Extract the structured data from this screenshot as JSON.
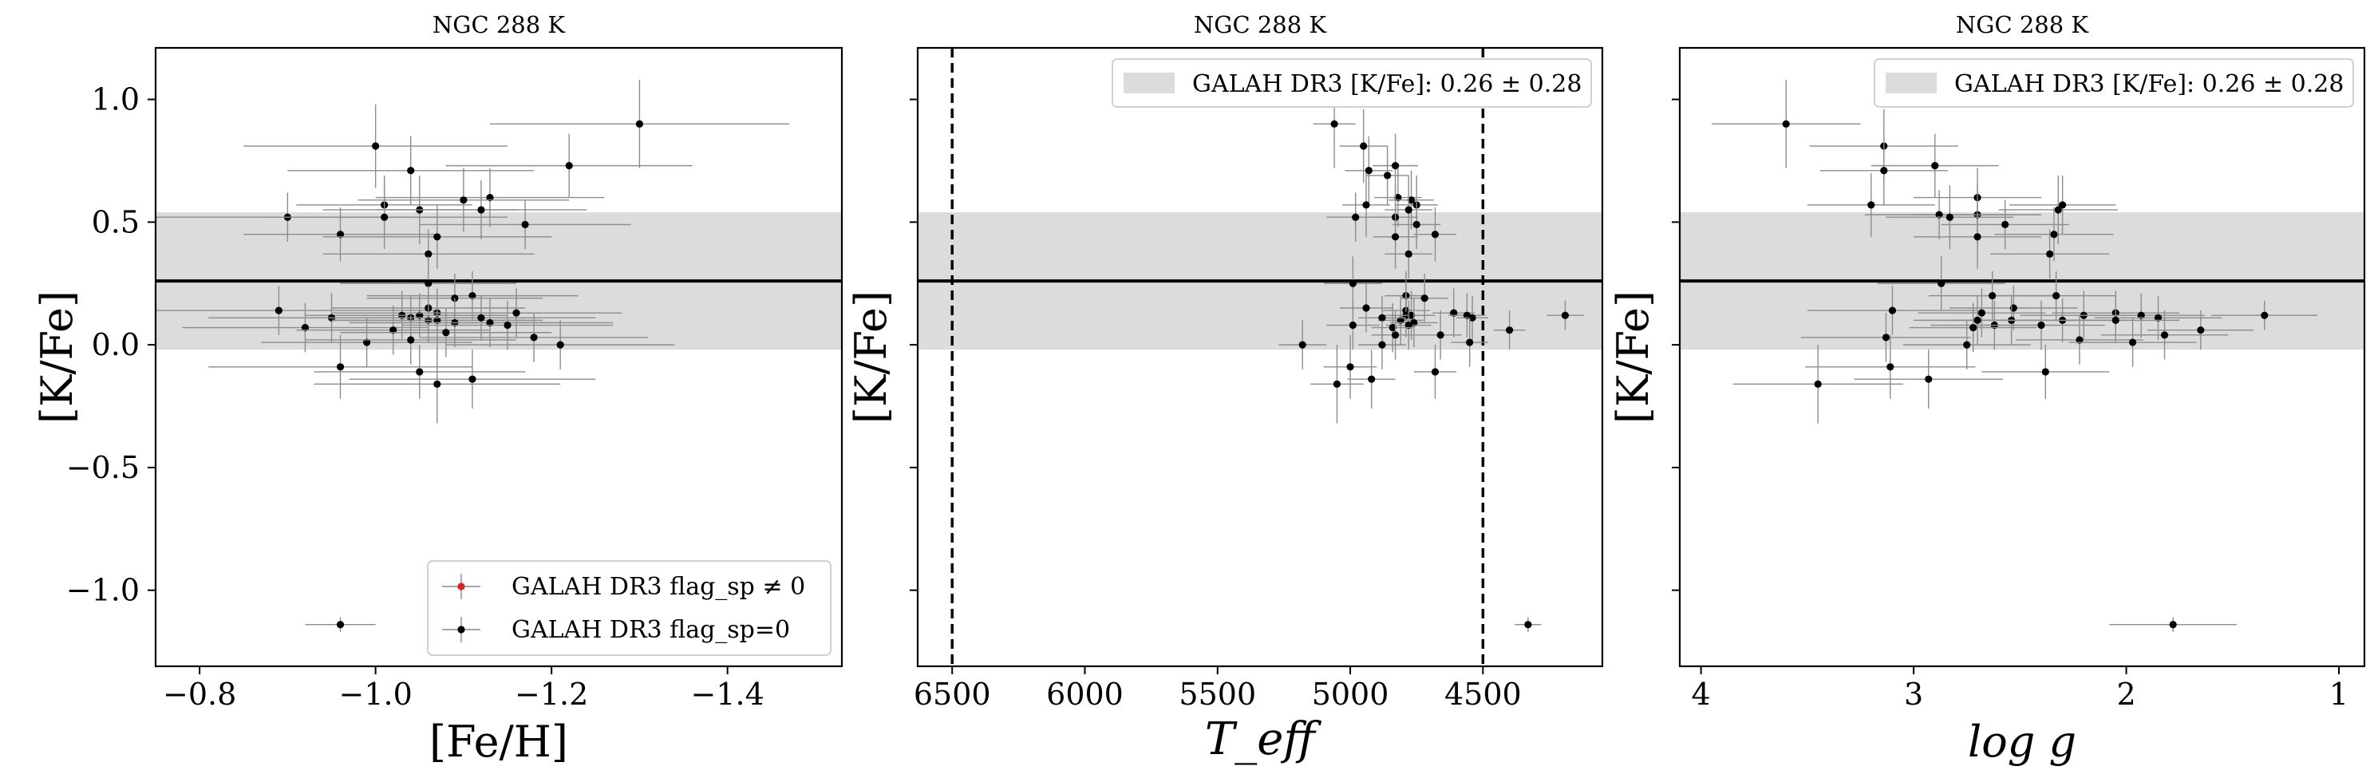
{
  "figure": {
    "title": "NGC 288 K"
  },
  "galah_band": {
    "center": 0.26,
    "halfwidth": 0.28
  },
  "legend_labels": {
    "flag_nonzero": "GALAH DR3 flag_sp ≠ 0",
    "flag_zero": "GALAH DR3 flag_sp=0",
    "galah_band": "GALAH DR3 [K/Fe]: 0.26 ± 0.28"
  },
  "colors": {
    "points": "#000000",
    "flag_nonzero": "#d62728",
    "band": "#dcdcdc",
    "errorbar": "#8c8c8c"
  },
  "chart_data": [
    {
      "type": "scatter",
      "title": "NGC 288 K",
      "xlabel": "[Fe/H]",
      "ylabel": "[K/Fe]",
      "xlim": [
        -0.75,
        -1.53
      ],
      "ylim": [
        -1.31,
        1.21
      ],
      "xticks": [
        -0.8,
        -1.0,
        -1.2,
        -1.4
      ],
      "xtick_labels": [
        "−0.8",
        "−1.0",
        "−1.2",
        "−1.4"
      ],
      "yticks": [
        1.0,
        0.5,
        0.0,
        -0.5,
        -1.0
      ],
      "ytick_labels": [
        "1.0",
        "0.5",
        "0.0",
        "−0.5",
        "−1.0"
      ],
      "legend": "bottom-right",
      "legend_entries": [
        "GALAH DR3 flag_sp ≠ 0",
        "GALAH DR3 flag_sp=0"
      ],
      "hline": 0.26,
      "vlines": [],
      "points": [
        {
          "x": -1.3,
          "y": 0.9,
          "xerr": 0.17,
          "yerr": 0.18
        },
        {
          "x": -1.0,
          "y": 0.81,
          "xerr": 0.15,
          "yerr": 0.17
        },
        {
          "x": -1.04,
          "y": 0.71,
          "xerr": 0.14,
          "yerr": 0.14
        },
        {
          "x": -1.22,
          "y": 0.73,
          "xerr": 0.14,
          "yerr": 0.13
        },
        {
          "x": -1.13,
          "y": 0.6,
          "xerr": 0.13,
          "yerr": 0.12
        },
        {
          "x": -1.1,
          "y": 0.59,
          "xerr": 0.12,
          "yerr": 0.13
        },
        {
          "x": -1.01,
          "y": 0.57,
          "xerr": 0.1,
          "yerr": 0.12
        },
        {
          "x": -1.05,
          "y": 0.55,
          "xerr": 0.11,
          "yerr": 0.14
        },
        {
          "x": -1.12,
          "y": 0.55,
          "xerr": 0.12,
          "yerr": 0.12
        },
        {
          "x": -0.9,
          "y": 0.52,
          "xerr": 0.17,
          "yerr": 0.1
        },
        {
          "x": -1.01,
          "y": 0.52,
          "xerr": 0.14,
          "yerr": 0.13
        },
        {
          "x": -1.17,
          "y": 0.49,
          "xerr": 0.12,
          "yerr": 0.1
        },
        {
          "x": -0.96,
          "y": 0.45,
          "xerr": 0.11,
          "yerr": 0.11
        },
        {
          "x": -1.07,
          "y": 0.44,
          "xerr": 0.13,
          "yerr": 0.13
        },
        {
          "x": -1.06,
          "y": 0.37,
          "xerr": 0.12,
          "yerr": 0.1
        },
        {
          "x": -1.06,
          "y": 0.25,
          "xerr": 0.1,
          "yerr": 0.11
        },
        {
          "x": -1.11,
          "y": 0.2,
          "xerr": 0.12,
          "yerr": 0.1
        },
        {
          "x": -1.09,
          "y": 0.19,
          "xerr": 0.1,
          "yerr": 0.1
        },
        {
          "x": -0.89,
          "y": 0.14,
          "xerr": 0.18,
          "yerr": 0.1
        },
        {
          "x": -1.06,
          "y": 0.15,
          "xerr": 0.11,
          "yerr": 0.09
        },
        {
          "x": -1.07,
          "y": 0.13,
          "xerr": 0.12,
          "yerr": 0.1
        },
        {
          "x": -1.03,
          "y": 0.12,
          "xerr": 0.11,
          "yerr": 0.1
        },
        {
          "x": -1.05,
          "y": 0.12,
          "xerr": 0.1,
          "yerr": 0.09
        },
        {
          "x": -1.16,
          "y": 0.13,
          "xerr": 0.12,
          "yerr": 0.1
        },
        {
          "x": -0.95,
          "y": 0.11,
          "xerr": 0.14,
          "yerr": 0.1
        },
        {
          "x": -1.04,
          "y": 0.11,
          "xerr": 0.12,
          "yerr": 0.09
        },
        {
          "x": -1.06,
          "y": 0.1,
          "xerr": 0.11,
          "yerr": 0.09
        },
        {
          "x": -1.07,
          "y": 0.1,
          "xerr": 0.12,
          "yerr": 0.1
        },
        {
          "x": -1.12,
          "y": 0.11,
          "xerr": 0.13,
          "yerr": 0.09
        },
        {
          "x": -1.09,
          "y": 0.09,
          "xerr": 0.12,
          "yerr": 0.1
        },
        {
          "x": -1.13,
          "y": 0.09,
          "xerr": 0.14,
          "yerr": 0.1
        },
        {
          "x": -1.15,
          "y": 0.08,
          "xerr": 0.12,
          "yerr": 0.1
        },
        {
          "x": -0.92,
          "y": 0.07,
          "xerr": 0.14,
          "yerr": 0.1
        },
        {
          "x": -1.02,
          "y": 0.06,
          "xerr": 0.11,
          "yerr": 0.1
        },
        {
          "x": -1.08,
          "y": 0.05,
          "xerr": 0.12,
          "yerr": 0.1
        },
        {
          "x": -1.18,
          "y": 0.03,
          "xerr": 0.13,
          "yerr": 0.1
        },
        {
          "x": -0.99,
          "y": 0.01,
          "xerr": 0.12,
          "yerr": 0.1
        },
        {
          "x": -1.04,
          "y": 0.02,
          "xerr": 0.12,
          "yerr": 0.1
        },
        {
          "x": -1.21,
          "y": 0.0,
          "xerr": 0.13,
          "yerr": 0.1
        },
        {
          "x": -0.96,
          "y": -0.09,
          "xerr": 0.15,
          "yerr": 0.13
        },
        {
          "x": -1.05,
          "y": -0.11,
          "xerr": 0.12,
          "yerr": 0.11
        },
        {
          "x": -1.11,
          "y": -0.14,
          "xerr": 0.14,
          "yerr": 0.12
        },
        {
          "x": -1.07,
          "y": -0.16,
          "xerr": 0.14,
          "yerr": 0.16
        },
        {
          "x": -0.96,
          "y": -1.14,
          "xerr": 0.04,
          "yerr": 0.03
        }
      ]
    },
    {
      "type": "scatter",
      "title": "NGC 288 K",
      "xlabel": "T_eff",
      "ylabel": "[K/Fe]",
      "xlim": [
        6630,
        4050
      ],
      "ylim": [
        -1.31,
        1.21
      ],
      "xticks": [
        6500,
        6000,
        5500,
        5000,
        4500
      ],
      "xtick_labels": [
        "6500",
        "6000",
        "5500",
        "5000",
        "4500"
      ],
      "yticks": [
        1.0,
        0.5,
        0.0,
        -0.5,
        -1.0
      ],
      "ytick_labels": [
        "",
        "",
        "",
        "",
        ""
      ],
      "legend": "top-right",
      "legend_entries": [
        "GALAH DR3 [K/Fe]: 0.26 ± 0.28"
      ],
      "hline": 0.26,
      "vlines": [
        6500,
        4500
      ],
      "points": [
        {
          "x": 5060,
          "y": 0.9,
          "xerr": 80,
          "yerr": 0.18
        },
        {
          "x": 4950,
          "y": 0.81,
          "xerr": 90,
          "yerr": 0.15
        },
        {
          "x": 4830,
          "y": 0.73,
          "xerr": 85,
          "yerr": 0.13
        },
        {
          "x": 4930,
          "y": 0.71,
          "xerr": 90,
          "yerr": 0.14
        },
        {
          "x": 4860,
          "y": 0.69,
          "xerr": 80,
          "yerr": 0.12
        },
        {
          "x": 4820,
          "y": 0.6,
          "xerr": 90,
          "yerr": 0.12
        },
        {
          "x": 4770,
          "y": 0.59,
          "xerr": 85,
          "yerr": 0.12
        },
        {
          "x": 4940,
          "y": 0.57,
          "xerr": 90,
          "yerr": 0.13
        },
        {
          "x": 4750,
          "y": 0.57,
          "xerr": 80,
          "yerr": 0.12
        },
        {
          "x": 4780,
          "y": 0.55,
          "xerr": 90,
          "yerr": 0.14
        },
        {
          "x": 4980,
          "y": 0.52,
          "xerr": 110,
          "yerr": 0.1
        },
        {
          "x": 4830,
          "y": 0.52,
          "xerr": 85,
          "yerr": 0.13
        },
        {
          "x": 4750,
          "y": 0.49,
          "xerr": 90,
          "yerr": 0.1
        },
        {
          "x": 4680,
          "y": 0.45,
          "xerr": 80,
          "yerr": 0.11
        },
        {
          "x": 4830,
          "y": 0.44,
          "xerr": 85,
          "yerr": 0.13
        },
        {
          "x": 4780,
          "y": 0.37,
          "xerr": 90,
          "yerr": 0.1
        },
        {
          "x": 4990,
          "y": 0.25,
          "xerr": 110,
          "yerr": 0.11
        },
        {
          "x": 4790,
          "y": 0.2,
          "xerr": 80,
          "yerr": 0.1
        },
        {
          "x": 4720,
          "y": 0.19,
          "xerr": 90,
          "yerr": 0.1
        },
        {
          "x": 4940,
          "y": 0.15,
          "xerr": 100,
          "yerr": 0.1
        },
        {
          "x": 4790,
          "y": 0.14,
          "xerr": 90,
          "yerr": 0.09
        },
        {
          "x": 4610,
          "y": 0.13,
          "xerr": 80,
          "yerr": 0.1
        },
        {
          "x": 4790,
          "y": 0.12,
          "xerr": 85,
          "yerr": 0.09
        },
        {
          "x": 4770,
          "y": 0.12,
          "xerr": 90,
          "yerr": 0.1
        },
        {
          "x": 4560,
          "y": 0.12,
          "xerr": 70,
          "yerr": 0.09
        },
        {
          "x": 4540,
          "y": 0.11,
          "xerr": 60,
          "yerr": 0.09
        },
        {
          "x": 4190,
          "y": 0.12,
          "xerr": 70,
          "yerr": 0.06
        },
        {
          "x": 4810,
          "y": 0.1,
          "xerr": 85,
          "yerr": 0.1
        },
        {
          "x": 4760,
          "y": 0.09,
          "xerr": 90,
          "yerr": 0.1
        },
        {
          "x": 4880,
          "y": 0.11,
          "xerr": 90,
          "yerr": 0.09
        },
        {
          "x": 4780,
          "y": 0.08,
          "xerr": 85,
          "yerr": 0.1
        },
        {
          "x": 4990,
          "y": 0.08,
          "xerr": 100,
          "yerr": 0.1
        },
        {
          "x": 4840,
          "y": 0.07,
          "xerr": 80,
          "yerr": 0.1
        },
        {
          "x": 4400,
          "y": 0.06,
          "xerr": 60,
          "yerr": 0.08
        },
        {
          "x": 4830,
          "y": 0.04,
          "xerr": 90,
          "yerr": 0.1
        },
        {
          "x": 4660,
          "y": 0.04,
          "xerr": 80,
          "yerr": 0.1
        },
        {
          "x": 4550,
          "y": 0.01,
          "xerr": 70,
          "yerr": 0.1
        },
        {
          "x": 5180,
          "y": 0.0,
          "xerr": 90,
          "yerr": 0.1
        },
        {
          "x": 4880,
          "y": 0.0,
          "xerr": 90,
          "yerr": 0.1
        },
        {
          "x": 5000,
          "y": -0.09,
          "xerr": 100,
          "yerr": 0.13
        },
        {
          "x": 4680,
          "y": -0.11,
          "xerr": 80,
          "yerr": 0.11
        },
        {
          "x": 4920,
          "y": -0.14,
          "xerr": 90,
          "yerr": 0.12
        },
        {
          "x": 5050,
          "y": -0.16,
          "xerr": 100,
          "yerr": 0.16
        },
        {
          "x": 4330,
          "y": -1.14,
          "xerr": 50,
          "yerr": 0.03
        }
      ]
    },
    {
      "type": "scatter",
      "title": "NGC 288 K",
      "xlabel": "log g",
      "ylabel": "[K/Fe]",
      "xlim": [
        4.1,
        0.88
      ],
      "ylim": [
        -1.31,
        1.21
      ],
      "xticks": [
        4,
        3,
        2,
        1
      ],
      "xtick_labels": [
        "4",
        "3",
        "2",
        "1"
      ],
      "yticks": [
        1.0,
        0.5,
        0.0,
        -0.5,
        -1.0
      ],
      "ytick_labels": [
        "",
        "",
        "",
        "",
        ""
      ],
      "legend": "top-right",
      "legend_entries": [
        "GALAH DR3 [K/Fe]: 0.26 ± 0.28"
      ],
      "hline": 0.26,
      "vlines": [],
      "points": [
        {
          "x": 3.6,
          "y": 0.9,
          "xerr": 0.35,
          "yerr": 0.18
        },
        {
          "x": 3.14,
          "y": 0.81,
          "xerr": 0.35,
          "yerr": 0.15
        },
        {
          "x": 2.9,
          "y": 0.73,
          "xerr": 0.3,
          "yerr": 0.13
        },
        {
          "x": 3.14,
          "y": 0.71,
          "xerr": 0.3,
          "yerr": 0.14
        },
        {
          "x": 2.7,
          "y": 0.6,
          "xerr": 0.3,
          "yerr": 0.12
        },
        {
          "x": 3.2,
          "y": 0.57,
          "xerr": 0.3,
          "yerr": 0.13
        },
        {
          "x": 2.3,
          "y": 0.57,
          "xerr": 0.25,
          "yerr": 0.12
        },
        {
          "x": 2.32,
          "y": 0.55,
          "xerr": 0.28,
          "yerr": 0.14
        },
        {
          "x": 2.7,
          "y": 0.53,
          "xerr": 0.3,
          "yerr": 0.12
        },
        {
          "x": 2.88,
          "y": 0.53,
          "xerr": 0.35,
          "yerr": 0.1
        },
        {
          "x": 2.83,
          "y": 0.52,
          "xerr": 0.3,
          "yerr": 0.13
        },
        {
          "x": 2.57,
          "y": 0.49,
          "xerr": 0.3,
          "yerr": 0.1
        },
        {
          "x": 2.34,
          "y": 0.45,
          "xerr": 0.28,
          "yerr": 0.11
        },
        {
          "x": 2.7,
          "y": 0.44,
          "xerr": 0.3,
          "yerr": 0.13
        },
        {
          "x": 2.36,
          "y": 0.37,
          "xerr": 0.28,
          "yerr": 0.1
        },
        {
          "x": 2.87,
          "y": 0.25,
          "xerr": 0.3,
          "yerr": 0.11
        },
        {
          "x": 2.63,
          "y": 0.2,
          "xerr": 0.3,
          "yerr": 0.1
        },
        {
          "x": 2.33,
          "y": 0.2,
          "xerr": 0.28,
          "yerr": 0.1
        },
        {
          "x": 3.1,
          "y": 0.14,
          "xerr": 0.4,
          "yerr": 0.1
        },
        {
          "x": 2.53,
          "y": 0.15,
          "xerr": 0.3,
          "yerr": 0.09
        },
        {
          "x": 2.68,
          "y": 0.13,
          "xerr": 0.3,
          "yerr": 0.1
        },
        {
          "x": 2.05,
          "y": 0.13,
          "xerr": 0.3,
          "yerr": 0.09
        },
        {
          "x": 2.2,
          "y": 0.12,
          "xerr": 0.3,
          "yerr": 0.1
        },
        {
          "x": 1.93,
          "y": 0.12,
          "xerr": 0.3,
          "yerr": 0.09
        },
        {
          "x": 1.85,
          "y": 0.11,
          "xerr": 0.3,
          "yerr": 0.09
        },
        {
          "x": 1.35,
          "y": 0.12,
          "xerr": 0.25,
          "yerr": 0.06
        },
        {
          "x": 2.54,
          "y": 0.1,
          "xerr": 0.3,
          "yerr": 0.1
        },
        {
          "x": 2.7,
          "y": 0.1,
          "xerr": 0.3,
          "yerr": 0.1
        },
        {
          "x": 2.3,
          "y": 0.1,
          "xerr": 0.3,
          "yerr": 0.09
        },
        {
          "x": 2.05,
          "y": 0.1,
          "xerr": 0.3,
          "yerr": 0.09
        },
        {
          "x": 2.62,
          "y": 0.08,
          "xerr": 0.3,
          "yerr": 0.1
        },
        {
          "x": 2.4,
          "y": 0.08,
          "xerr": 0.3,
          "yerr": 0.1
        },
        {
          "x": 2.72,
          "y": 0.07,
          "xerr": 0.3,
          "yerr": 0.1
        },
        {
          "x": 1.65,
          "y": 0.06,
          "xerr": 0.25,
          "yerr": 0.08
        },
        {
          "x": 1.82,
          "y": 0.04,
          "xerr": 0.3,
          "yerr": 0.1
        },
        {
          "x": 3.13,
          "y": 0.03,
          "xerr": 0.4,
          "yerr": 0.1
        },
        {
          "x": 2.22,
          "y": 0.02,
          "xerr": 0.3,
          "yerr": 0.1
        },
        {
          "x": 1.97,
          "y": 0.01,
          "xerr": 0.3,
          "yerr": 0.1
        },
        {
          "x": 2.75,
          "y": 0.0,
          "xerr": 0.3,
          "yerr": 0.1
        },
        {
          "x": 3.11,
          "y": -0.09,
          "xerr": 0.4,
          "yerr": 0.13
        },
        {
          "x": 2.38,
          "y": -0.11,
          "xerr": 0.3,
          "yerr": 0.11
        },
        {
          "x": 2.93,
          "y": -0.14,
          "xerr": 0.35,
          "yerr": 0.12
        },
        {
          "x": 3.45,
          "y": -0.16,
          "xerr": 0.4,
          "yerr": 0.16
        },
        {
          "x": 1.78,
          "y": -1.14,
          "xerr": 0.3,
          "yerr": 0.03
        }
      ]
    }
  ]
}
